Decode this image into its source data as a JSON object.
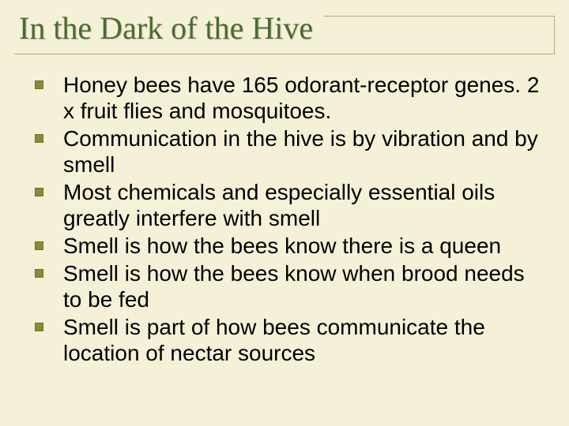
{
  "slide": {
    "title": "In the Dark of the Hive",
    "title_color": "#4a6b2f",
    "title_fontsize": 40,
    "title_font": "Garamond",
    "background_color": "#f5f0d8",
    "rule_color": "#b9a96b",
    "bullet_color": "#8a8a3a",
    "body_fontsize": 28,
    "bullets": [
      "Honey bees have 165 odorant-receptor genes. 2 x fruit flies and mosquitoes.",
      "Communication in the hive is by vibration and by smell",
      "Most chemicals and especially essential oils greatly interfere with smell",
      "Smell is how the bees know there is a queen",
      "Smell is how the bees know when brood needs to be fed",
      "Smell is part of how bees communicate the location of nectar sources"
    ]
  }
}
